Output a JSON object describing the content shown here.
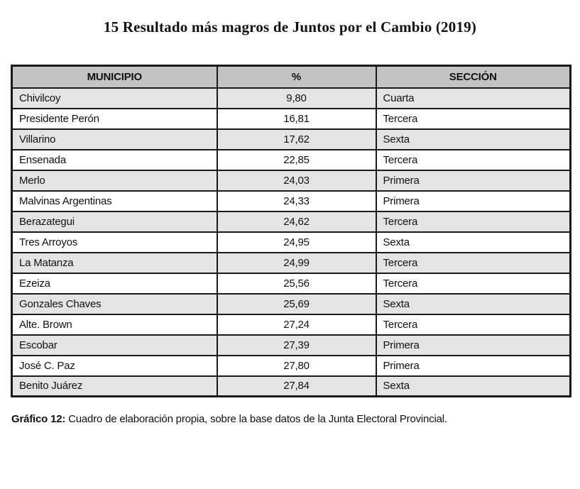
{
  "title": "15 Resultado más magros de Juntos por el Cambio (2019)",
  "table": {
    "columns": [
      "MUNICIPIO",
      "%",
      "SECCIÓN"
    ],
    "rows": [
      {
        "municipio": "Chivilcoy",
        "pct": "9,80",
        "seccion": "Cuarta"
      },
      {
        "municipio": "Presidente Perón",
        "pct": "16,81",
        "seccion": "Tercera"
      },
      {
        "municipio": "Villarino",
        "pct": "17,62",
        "seccion": "Sexta"
      },
      {
        "municipio": "Ensenada",
        "pct": "22,85",
        "seccion": "Tercera"
      },
      {
        "municipio": "Merlo",
        "pct": "24,03",
        "seccion": "Primera"
      },
      {
        "municipio": "Malvinas Argentinas",
        "pct": "24,33",
        "seccion": "Primera"
      },
      {
        "municipio": "Berazategui",
        "pct": "24,62",
        "seccion": "Tercera"
      },
      {
        "municipio": "Tres Arroyos",
        "pct": "24,95",
        "seccion": "Sexta"
      },
      {
        "municipio": "La Matanza",
        "pct": "24,99",
        "seccion": "Tercera"
      },
      {
        "municipio": "Ezeiza",
        "pct": "25,56",
        "seccion": "Tercera"
      },
      {
        "municipio": "Gonzales Chaves",
        "pct": "25,69",
        "seccion": "Sexta"
      },
      {
        "municipio": "Alte. Brown",
        "pct": "27,24",
        "seccion": "Tercera"
      },
      {
        "municipio": "Escobar",
        "pct": "27,39",
        "seccion": "Primera"
      },
      {
        "municipio": "José C. Paz",
        "pct": "27,80",
        "seccion": "Primera"
      },
      {
        "municipio": "Benito Juárez",
        "pct": "27,84",
        "seccion": "Sexta"
      }
    ]
  },
  "caption": {
    "label": "Gráfico 12:",
    "text": " Cuadro de elaboración propia, sobre la base datos de la Junta Electoral Provincial."
  },
  "colors": {
    "header_bg": "#c3c3c3",
    "row_alt_bg": "#e4e4e4",
    "row_bg": "#ffffff",
    "border": "#1a1a1a"
  },
  "chart_data": {
    "type": "table",
    "title": "15 Resultado más magros de Juntos por el Cambio (2019)",
    "columns": [
      "MUNICIPIO",
      "%",
      "SECCIÓN"
    ],
    "rows": [
      [
        "Chivilcoy",
        "9,80",
        "Cuarta"
      ],
      [
        "Presidente Perón",
        "16,81",
        "Tercera"
      ],
      [
        "Villarino",
        "17,62",
        "Sexta"
      ],
      [
        "Ensenada",
        "22,85",
        "Tercera"
      ],
      [
        "Merlo",
        "24,03",
        "Primera"
      ],
      [
        "Malvinas Argentinas",
        "24,33",
        "Primera"
      ],
      [
        "Berazategui",
        "24,62",
        "Tercera"
      ],
      [
        "Tres Arroyos",
        "24,95",
        "Sexta"
      ],
      [
        "La Matanza",
        "24,99",
        "Tercera"
      ],
      [
        "Ezeiza",
        "25,56",
        "Tercera"
      ],
      [
        "Gonzales Chaves",
        "25,69",
        "Sexta"
      ],
      [
        "Alte. Brown",
        "27,24",
        "Tercera"
      ],
      [
        "Escobar",
        "27,39",
        "Primera"
      ],
      [
        "José C. Paz",
        "27,80",
        "Primera"
      ],
      [
        "Benito Juárez",
        "27,84",
        "Sexta"
      ]
    ]
  }
}
